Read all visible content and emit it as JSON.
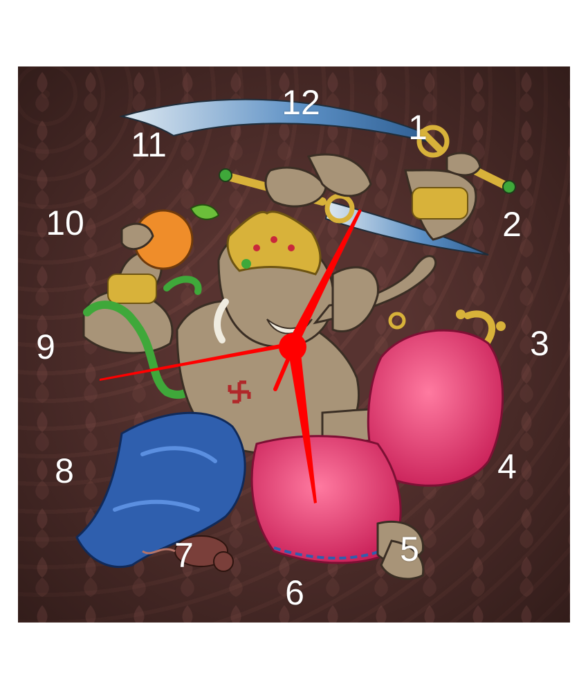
{
  "clock": {
    "numerals": [
      "12",
      "1",
      "2",
      "3",
      "4",
      "5",
      "6",
      "7",
      "8",
      "9",
      "10",
      "11"
    ],
    "hand_color": "#ff0000",
    "numeral_color": "#ffffff",
    "background_color": "#573330"
  },
  "artwork": {
    "subject": "ganesha-with-sword",
    "colors": {
      "skin": "#a89478",
      "dhoti": "#e23c6c",
      "sash": "#2f5fae",
      "gold": "#d8b23a",
      "blade": "#5b8fc4",
      "orange": "#ef8d2a",
      "snake": "#3fa83a"
    }
  }
}
